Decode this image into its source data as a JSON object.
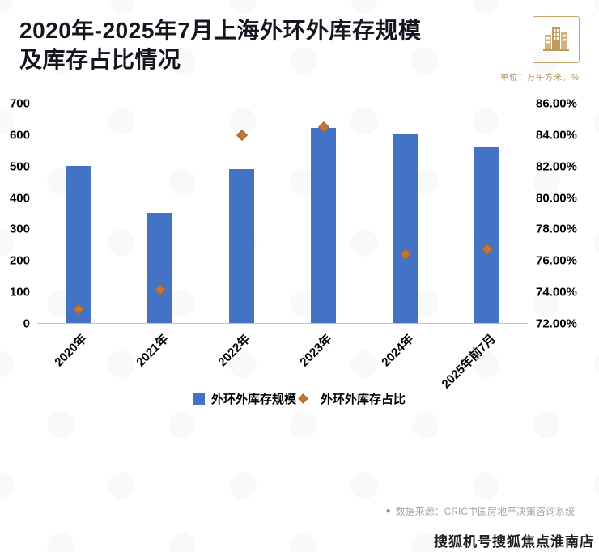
{
  "header": {
    "title_line1": "2020年-2025年7月上海外环外库存规模",
    "title_line2": "及库存占比情况",
    "unit_note": "单位：万平方米，%",
    "logo_icon": "building-icon"
  },
  "chart_data": {
    "type": "bar",
    "categories": [
      "2020年",
      "2021年",
      "2022年",
      "2023年",
      "2024年",
      "2025年前7月"
    ],
    "series": [
      {
        "name": "外环外库存规模",
        "type": "bar",
        "axis": "left",
        "color": "#4472c4",
        "values": [
          500,
          352,
          490,
          622,
          605,
          560
        ]
      },
      {
        "name": "外环外库存占比",
        "type": "scatter",
        "marker": "diamond",
        "axis": "right",
        "color": "#c0783c",
        "values": [
          72.9,
          74.1,
          84.0,
          84.5,
          76.4,
          76.7
        ]
      }
    ],
    "left_axis": {
      "min": 0,
      "max": 700,
      "step": 100,
      "ticks": [
        "700",
        "600",
        "500",
        "400",
        "300",
        "200",
        "100",
        "0"
      ]
    },
    "right_axis": {
      "min": 72,
      "max": 86,
      "step": 2,
      "ticks": [
        "86.00%",
        "84.00%",
        "82.00%",
        "80.00%",
        "78.00%",
        "76.00%",
        "74.00%",
        "72.00%"
      ]
    },
    "legend": [
      {
        "label": "外环外库存规模",
        "marker": "square",
        "color": "#4472c4"
      },
      {
        "label": "外环外库存占比",
        "marker": "diamond",
        "color": "#c0783c"
      }
    ],
    "grid": false,
    "legend_position": "bottom"
  },
  "footer": {
    "source": "数据来源：CRIC中国房地产决策咨询系统",
    "watermark": "搜狐机号搜狐焦点淮南店"
  }
}
